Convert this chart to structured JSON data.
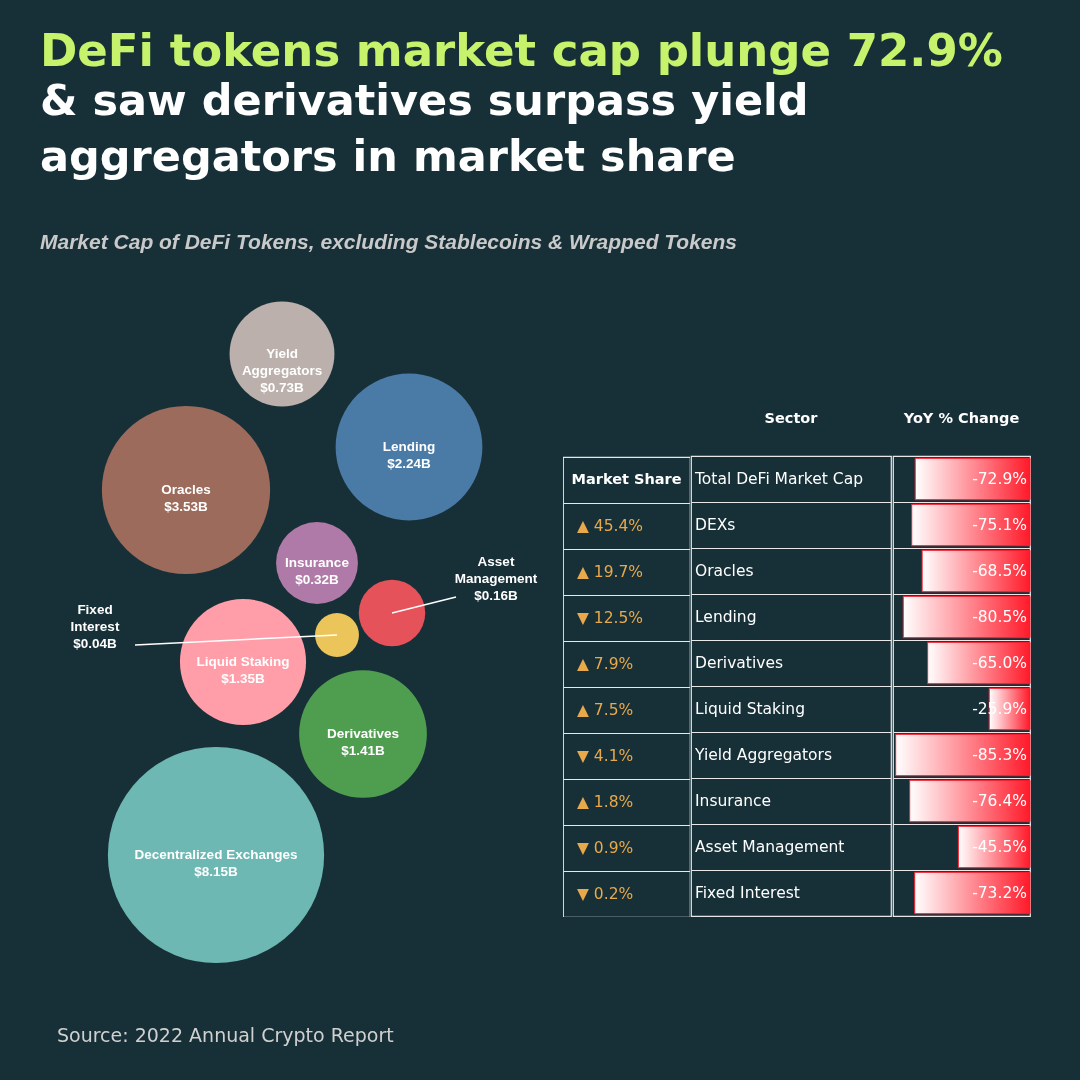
{
  "chart_data": [
    {
      "type": "other",
      "title": "DeFi tokens market cap plunge 72.9%",
      "subtitle": "& saw derivatives surpass yield aggregators in market share",
      "annotations": [
        "Market Cap of DeFi Tokens, excluding Stablecoins & Wrapped Tokens",
        "Source: 2022 Annual Crypto Report"
      ],
      "categories": [
        "Yield Aggregators",
        "Lending",
        "Oracles",
        "Insurance",
        "Asset Management",
        "Fixed Interest",
        "Liquid Staking",
        "Derivatives",
        "Decentralized Exchanges"
      ],
      "values": [
        0.73,
        2.24,
        3.53,
        0.32,
        0.16,
        0.04,
        1.35,
        1.41,
        8.15
      ],
      "value_labels": [
        "$0.73B",
        "$2.24B",
        "$3.53B",
        "$0.32B",
        "$0.16B",
        "$0.04B",
        "$1.35B",
        "$1.41B",
        "$8.15B"
      ],
      "colors": [
        "#bbb0ab",
        "#4a7aa6",
        "#9c6b5b",
        "#b07aa8",
        "#e5525a",
        "#ecc55a",
        "#ff9ea8",
        "#4f9e50",
        "#6db8b2"
      ]
    },
    {
      "type": "other",
      "title": "Market Share",
      "values": [
        null,
        45.4,
        19.7,
        12.5,
        7.9,
        7.5,
        4.1,
        1.8,
        0.9,
        0.2
      ],
      "value_labels": [
        null,
        "▲ 45.4%",
        "▲ 19.7%",
        "▼ 12.5%",
        "▲ 7.9%",
        "▲ 7.5%",
        "▼ 4.1%",
        "▲ 1.8%",
        "▼ 0.9%",
        "▼ 0.2%"
      ],
      "color": "#e8a94a"
    },
    {
      "type": "bar",
      "orientation": "horizontal",
      "ylabel": "Sector",
      "xlabel": "YoY % Change",
      "categories": [
        "Total DeFi Market Cap",
        "DEXs",
        "Oracles",
        "Lending",
        "Derivatives",
        "Liquid Staking",
        "Yield Aggregators",
        "Insurance",
        "Asset Management",
        "Fixed Interest"
      ],
      "values": [
        -72.9,
        -75.1,
        -68.5,
        -80.5,
        -65.0,
        -25.9,
        -85.3,
        -76.4,
        -45.5,
        -73.2
      ],
      "value_labels": [
        "-72.9%",
        "-75.1%",
        "-68.5%",
        "-80.5%",
        "-65.0%",
        "-25.9%",
        "-85.3%",
        "-76.4%",
        "-45.5%",
        "-73.2%"
      ],
      "color": "#ff1a2a",
      "xlim": [
        -87,
        0
      ],
      "tick_labels": "y",
      "grid": "y"
    }
  ]
}
